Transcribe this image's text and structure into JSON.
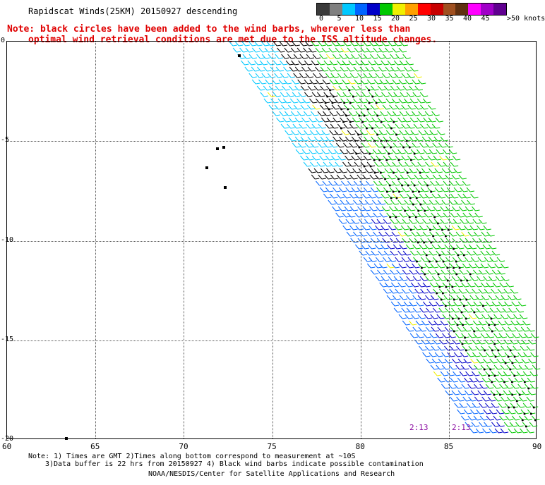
{
  "header": {
    "title": "Rapidscat Winds(25KM) 20150927 descending",
    "note_line1": "Note: black circles have been added to the wind barbs, wherever less than",
    "note_line2": "optimal wind retrieval conditions are met due to the ISS altitude changes."
  },
  "legend": {
    "units": ">50 knots",
    "ticks": [
      "0",
      "5",
      "10",
      "15",
      "20",
      "25",
      "30",
      "35",
      "40",
      "45"
    ],
    "colors": [
      "#3a3a3a",
      "#7f7f7f",
      "#00c8ff",
      "#0064ff",
      "#0000c8",
      "#00c800",
      "#f0f000",
      "#ffa000",
      "#ff0000",
      "#c80000",
      "#a05020",
      "#603010",
      "#ff00ff",
      "#a000c8",
      "#600090"
    ]
  },
  "map": {
    "lat_labels": [
      "0",
      "-5",
      "-10",
      "-15",
      "-20"
    ],
    "lon_labels": [
      "60",
      "65",
      "70",
      "75",
      "80",
      "85",
      "90"
    ],
    "lat_range": [
      -20,
      0
    ],
    "lon_range": [
      60,
      90
    ],
    "time_labels": [
      "2:13",
      "2:13"
    ]
  },
  "footer": {
    "line1": "Note: 1) Times are GMT 2)Times along bottom correspond to measurement at ~10S",
    "line2": "3)Data buffer is 22 hrs from 20150927 4) Black wind barbs indicate possible contamination",
    "line3": "NOAA/NESDIS/Center for Satellite Applications and Research"
  }
}
